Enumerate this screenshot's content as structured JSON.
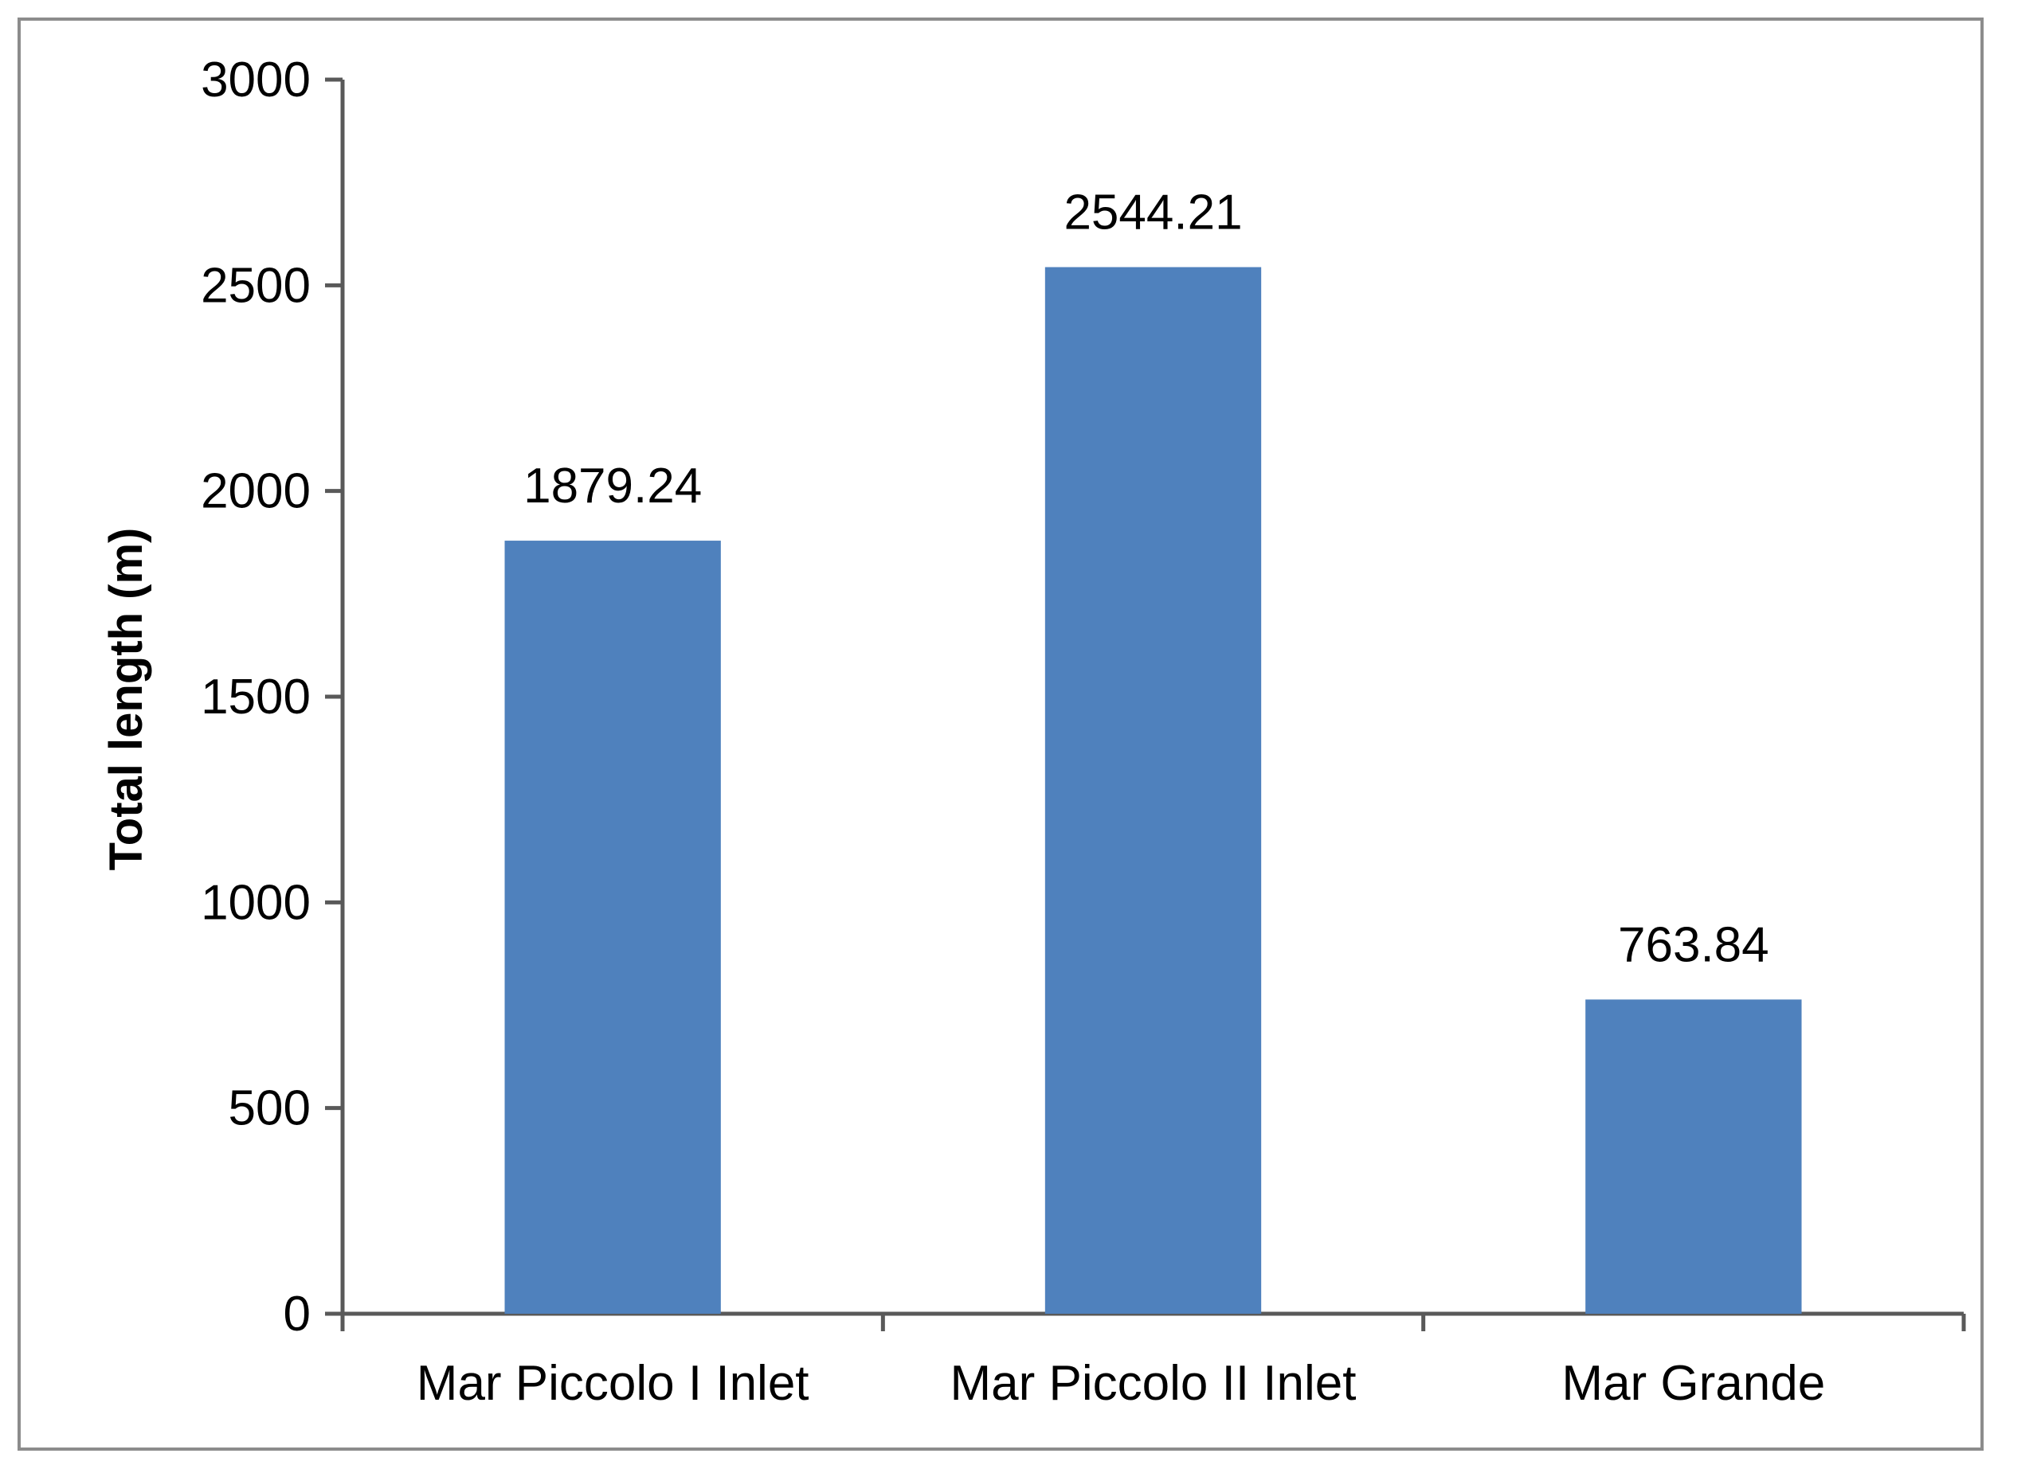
{
  "chart_data": {
    "type": "bar",
    "title": "",
    "xlabel": "",
    "ylabel": "Total length (m)",
    "ylim": [
      0,
      3000
    ],
    "yticks": [
      0,
      500,
      1000,
      1500,
      2000,
      2500,
      3000
    ],
    "categories": [
      "Mar Piccolo I Inlet",
      "Mar Piccolo II Inlet",
      "Mar Grande"
    ],
    "values": [
      1879.24,
      2544.21,
      763.84
    ],
    "data_labels": [
      "1879.24",
      "2544.21",
      "763.84"
    ],
    "grid": false,
    "legend": "none",
    "colors": {
      "bar": "#4f81bd",
      "axis": "#595959",
      "frame": "#8c8c8c"
    }
  }
}
